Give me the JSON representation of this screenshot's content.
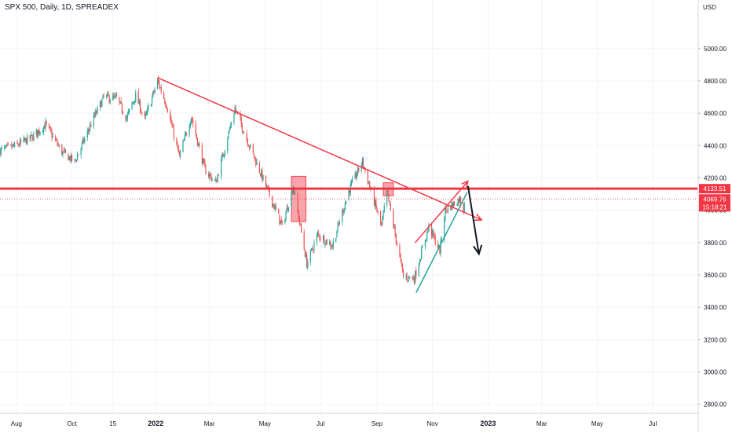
{
  "header": {
    "title": "SPX 500, Daily, 1D, SPREADEX"
  },
  "colors": {
    "up": "#26a69a",
    "down": "#ef5350",
    "grid": "#f0f3fa",
    "axis_text": "#131722",
    "trend": "#f23645",
    "black_arrow": "#131722",
    "price_tag_bg": "#f23645",
    "price_tag_text": "#ffffff"
  },
  "chart_data": {
    "type": "candlestick",
    "title": "SPX 500, Daily, 1D, SPREADEX",
    "currency_label": "USD",
    "ylim": [
      2750,
      5300
    ],
    "xlim": [
      "2021-07-14",
      "2023-08-19"
    ],
    "y_ticks": [
      "5000.00",
      "4800.00",
      "4600.00",
      "4400.00",
      "4200.00",
      "4000.00",
      "3800.00",
      "3600.00",
      "3400.00",
      "3200.00",
      "3000.00",
      "2800.00"
    ],
    "x_ticks": [
      {
        "label": "Aug",
        "date": "2021-08-01",
        "bold": false
      },
      {
        "label": "Oct",
        "date": "2021-10-01",
        "bold": false
      },
      {
        "label": "15",
        "date": "2021-11-15",
        "bold": false
      },
      {
        "label": "2022",
        "date": "2022-01-01",
        "bold": true
      },
      {
        "label": "Mar",
        "date": "2022-03-01",
        "bold": false
      },
      {
        "label": "May",
        "date": "2022-05-01",
        "bold": false
      },
      {
        "label": "Jul",
        "date": "2022-07-01",
        "bold": false
      },
      {
        "label": "Sep",
        "date": "2022-09-01",
        "bold": false
      },
      {
        "label": "Nov",
        "date": "2022-11-01",
        "bold": false
      },
      {
        "label": "2023",
        "date": "2023-01-01",
        "bold": true
      },
      {
        "label": "Mar",
        "date": "2023-03-01",
        "bold": false
      },
      {
        "label": "May",
        "date": "2023-05-01",
        "bold": false
      },
      {
        "label": "Jul",
        "date": "2023-07-01",
        "bold": false
      }
    ],
    "grid": true,
    "price_path": [
      [
        "2021-07-14",
        4370
      ],
      [
        "2021-08-01",
        4400
      ],
      [
        "2021-08-18",
        4450
      ],
      [
        "2021-09-02",
        4530
      ],
      [
        "2021-09-20",
        4360
      ],
      [
        "2021-10-04",
        4300
      ],
      [
        "2021-10-25",
        4570
      ],
      [
        "2021-11-05",
        4700
      ],
      [
        "2021-11-19",
        4690
      ],
      [
        "2021-11-30",
        4570
      ],
      [
        "2021-12-10",
        4710
      ],
      [
        "2021-12-20",
        4560
      ],
      [
        "2022-01-03",
        4800
      ],
      [
        "2022-01-13",
        4650
      ],
      [
        "2022-01-27",
        4330
      ],
      [
        "2022-02-09",
        4580
      ],
      [
        "2022-02-24",
        4250
      ],
      [
        "2022-03-08",
        4170
      ],
      [
        "2022-03-29",
        4630
      ],
      [
        "2022-04-14",
        4400
      ],
      [
        "2022-05-02",
        4150
      ],
      [
        "2022-05-20",
        3900
      ],
      [
        "2022-06-01",
        4150
      ],
      [
        "2022-06-16",
        3670
      ],
      [
        "2022-06-28",
        3850
      ],
      [
        "2022-07-14",
        3780
      ],
      [
        "2022-08-01",
        4120
      ],
      [
        "2022-08-16",
        4300
      ],
      [
        "2022-09-06",
        3900
      ],
      [
        "2022-09-12",
        4110
      ],
      [
        "2022-09-30",
        3590
      ],
      [
        "2022-10-12",
        3580
      ],
      [
        "2022-10-28",
        3900
      ],
      [
        "2022-11-09",
        3750
      ],
      [
        "2022-11-15",
        4000
      ],
      [
        "2022-12-01",
        4070
      ],
      [
        "2022-12-05",
        4000
      ],
      [
        "2022-12-06",
        4070
      ]
    ],
    "annotations": {
      "horizontal_level": 4133.51,
      "current_price": 4069.76,
      "price_label": "4133.51",
      "current_label": "4069.76",
      "countdown_label": "15:18:21",
      "descending_trendline": [
        [
          "2022-01-03",
          4820
        ],
        [
          "2022-12-25",
          3940
        ]
      ],
      "rising_wedge_upper": [
        [
          "2022-10-13",
          3800
        ],
        [
          "2022-12-10",
          4180
        ]
      ],
      "rising_wedge_lower": [
        [
          "2022-10-14",
          3490
        ],
        [
          "2022-12-09",
          4110
        ]
      ],
      "black_arrow": [
        [
          "2022-12-10",
          4150
        ],
        [
          "2022-12-22",
          3730
        ]
      ],
      "highlight_boxes": [
        {
          "from": "2022-05-30",
          "to": "2022-06-15",
          "low": 3930,
          "high": 4210
        },
        {
          "from": "2022-09-08",
          "to": "2022-09-19",
          "low": 4090,
          "high": 4170
        }
      ]
    }
  }
}
